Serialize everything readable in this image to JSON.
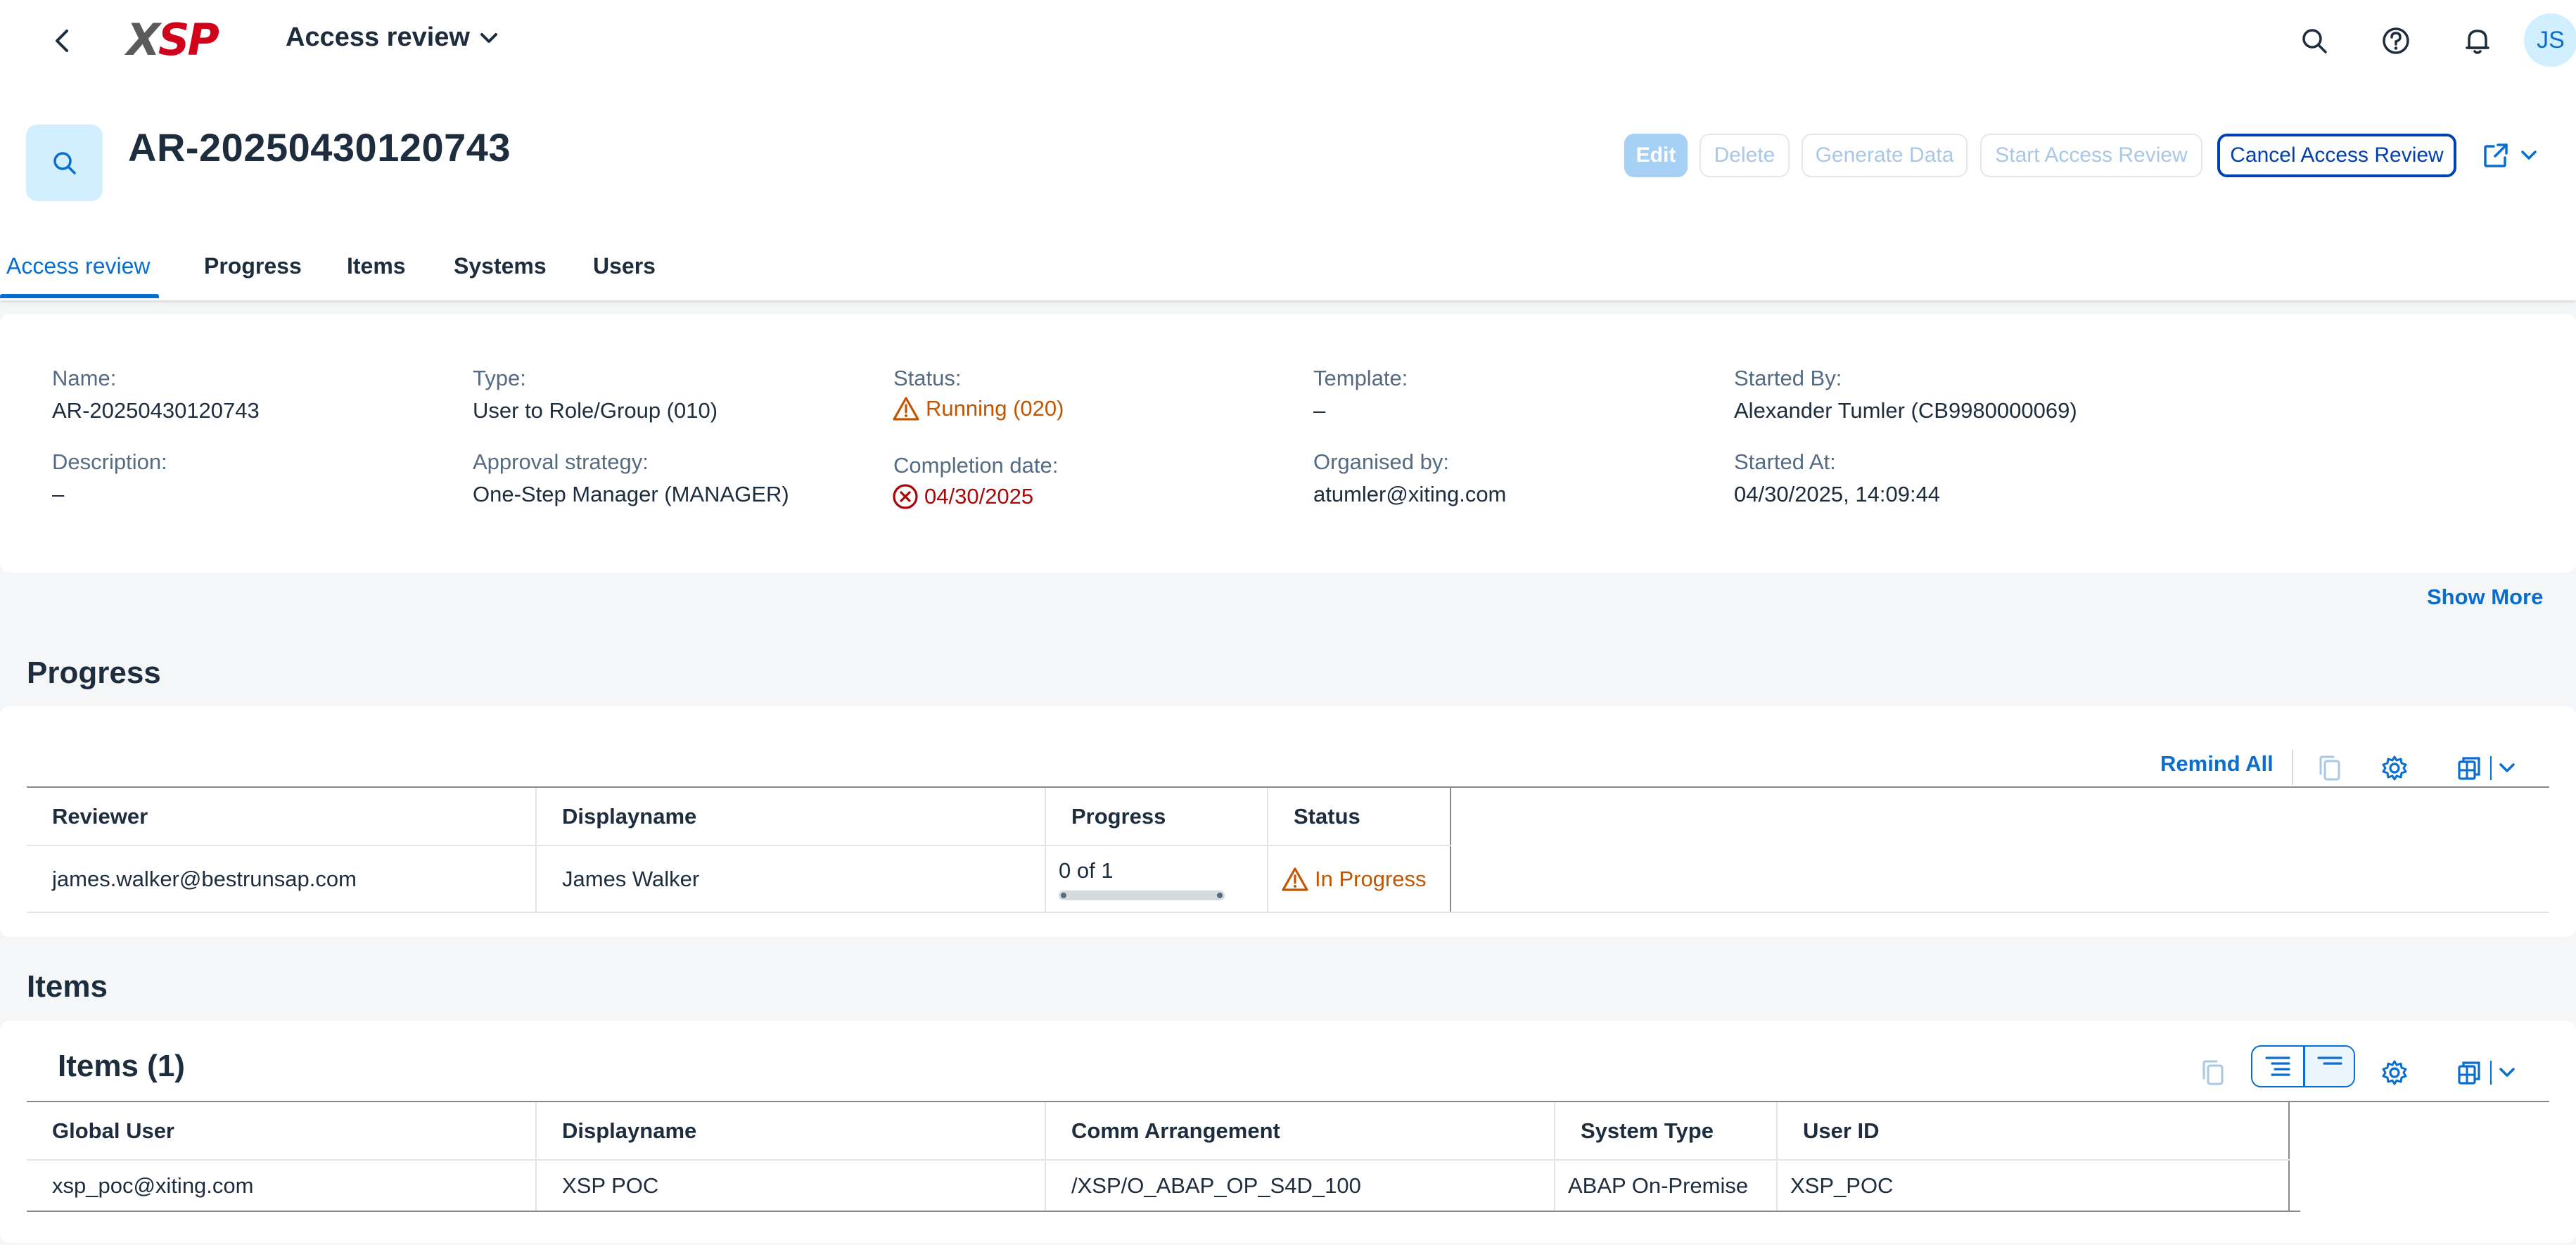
{
  "shell": {
    "logo": "XSP",
    "app_title": "Access review",
    "avatar_initials": "JS"
  },
  "header": {
    "object_title": "AR-20250430120743",
    "actions": {
      "edit": "Edit",
      "delete": "Delete",
      "generate": "Generate Data",
      "start": "Start Access Review",
      "cancel": "Cancel Access Review"
    }
  },
  "tabs": [
    "Access review",
    "Progress",
    "Items",
    "Systems",
    "Users"
  ],
  "info": {
    "name_label": "Name:",
    "name_value": "AR-20250430120743",
    "description_label": "Description:",
    "description_value": "–",
    "type_label": "Type:",
    "type_value": "User to Role/Group (010)",
    "approval_label": "Approval strategy:",
    "approval_value": "One-Step Manager (MANAGER)",
    "status_label": "Status:",
    "status_value": "Running (020)",
    "completion_label": "Completion date:",
    "completion_value": "04/30/2025",
    "template_label": "Template:",
    "template_value": "–",
    "organised_label": "Organised by:",
    "organised_value": "atumler@xiting.com",
    "started_by_label": "Started By:",
    "started_by_value": "Alexander Tumler (CB9980000069)",
    "started_at_label": "Started At:",
    "started_at_value": "04/30/2025, 14:09:44",
    "show_more": "Show More"
  },
  "progress_section": {
    "title": "Progress",
    "remind_all": "Remind All",
    "columns": [
      "Reviewer",
      "Displayname",
      "Progress",
      "Status"
    ],
    "rows": [
      {
        "reviewer": "james.walker@bestrunsap.com",
        "displayname": "James Walker",
        "progress_text": "0 of 1",
        "progress_fraction": 0,
        "status": "In Progress"
      }
    ]
  },
  "items_section": {
    "title": "Items",
    "card_title": "Items (1)",
    "columns": [
      "Global User",
      "Displayname",
      "Comm Arrangement",
      "System Type",
      "User ID"
    ],
    "rows": [
      {
        "global_user": "xsp_poc@xiting.com",
        "displayname": "XSP POC",
        "comm": "/XSP/O_ABAP_OP_S4D_100",
        "system_type": "ABAP On-Premise",
        "user_id": "XSP_POC"
      }
    ]
  },
  "colors": {
    "accent": "#0a6ed1",
    "warning": "#c35500",
    "error": "#aa0808",
    "logo_grey": "#5b5b5b",
    "logo_red": "#d0021b"
  },
  "icons": [
    "back-icon",
    "chevron-down-icon",
    "search-icon",
    "help-icon",
    "bell-icon",
    "share-icon",
    "warning-icon",
    "error-icon",
    "copy-icon",
    "gear-icon",
    "export-icon",
    "expand-all-icon",
    "collapse-all-icon"
  ]
}
